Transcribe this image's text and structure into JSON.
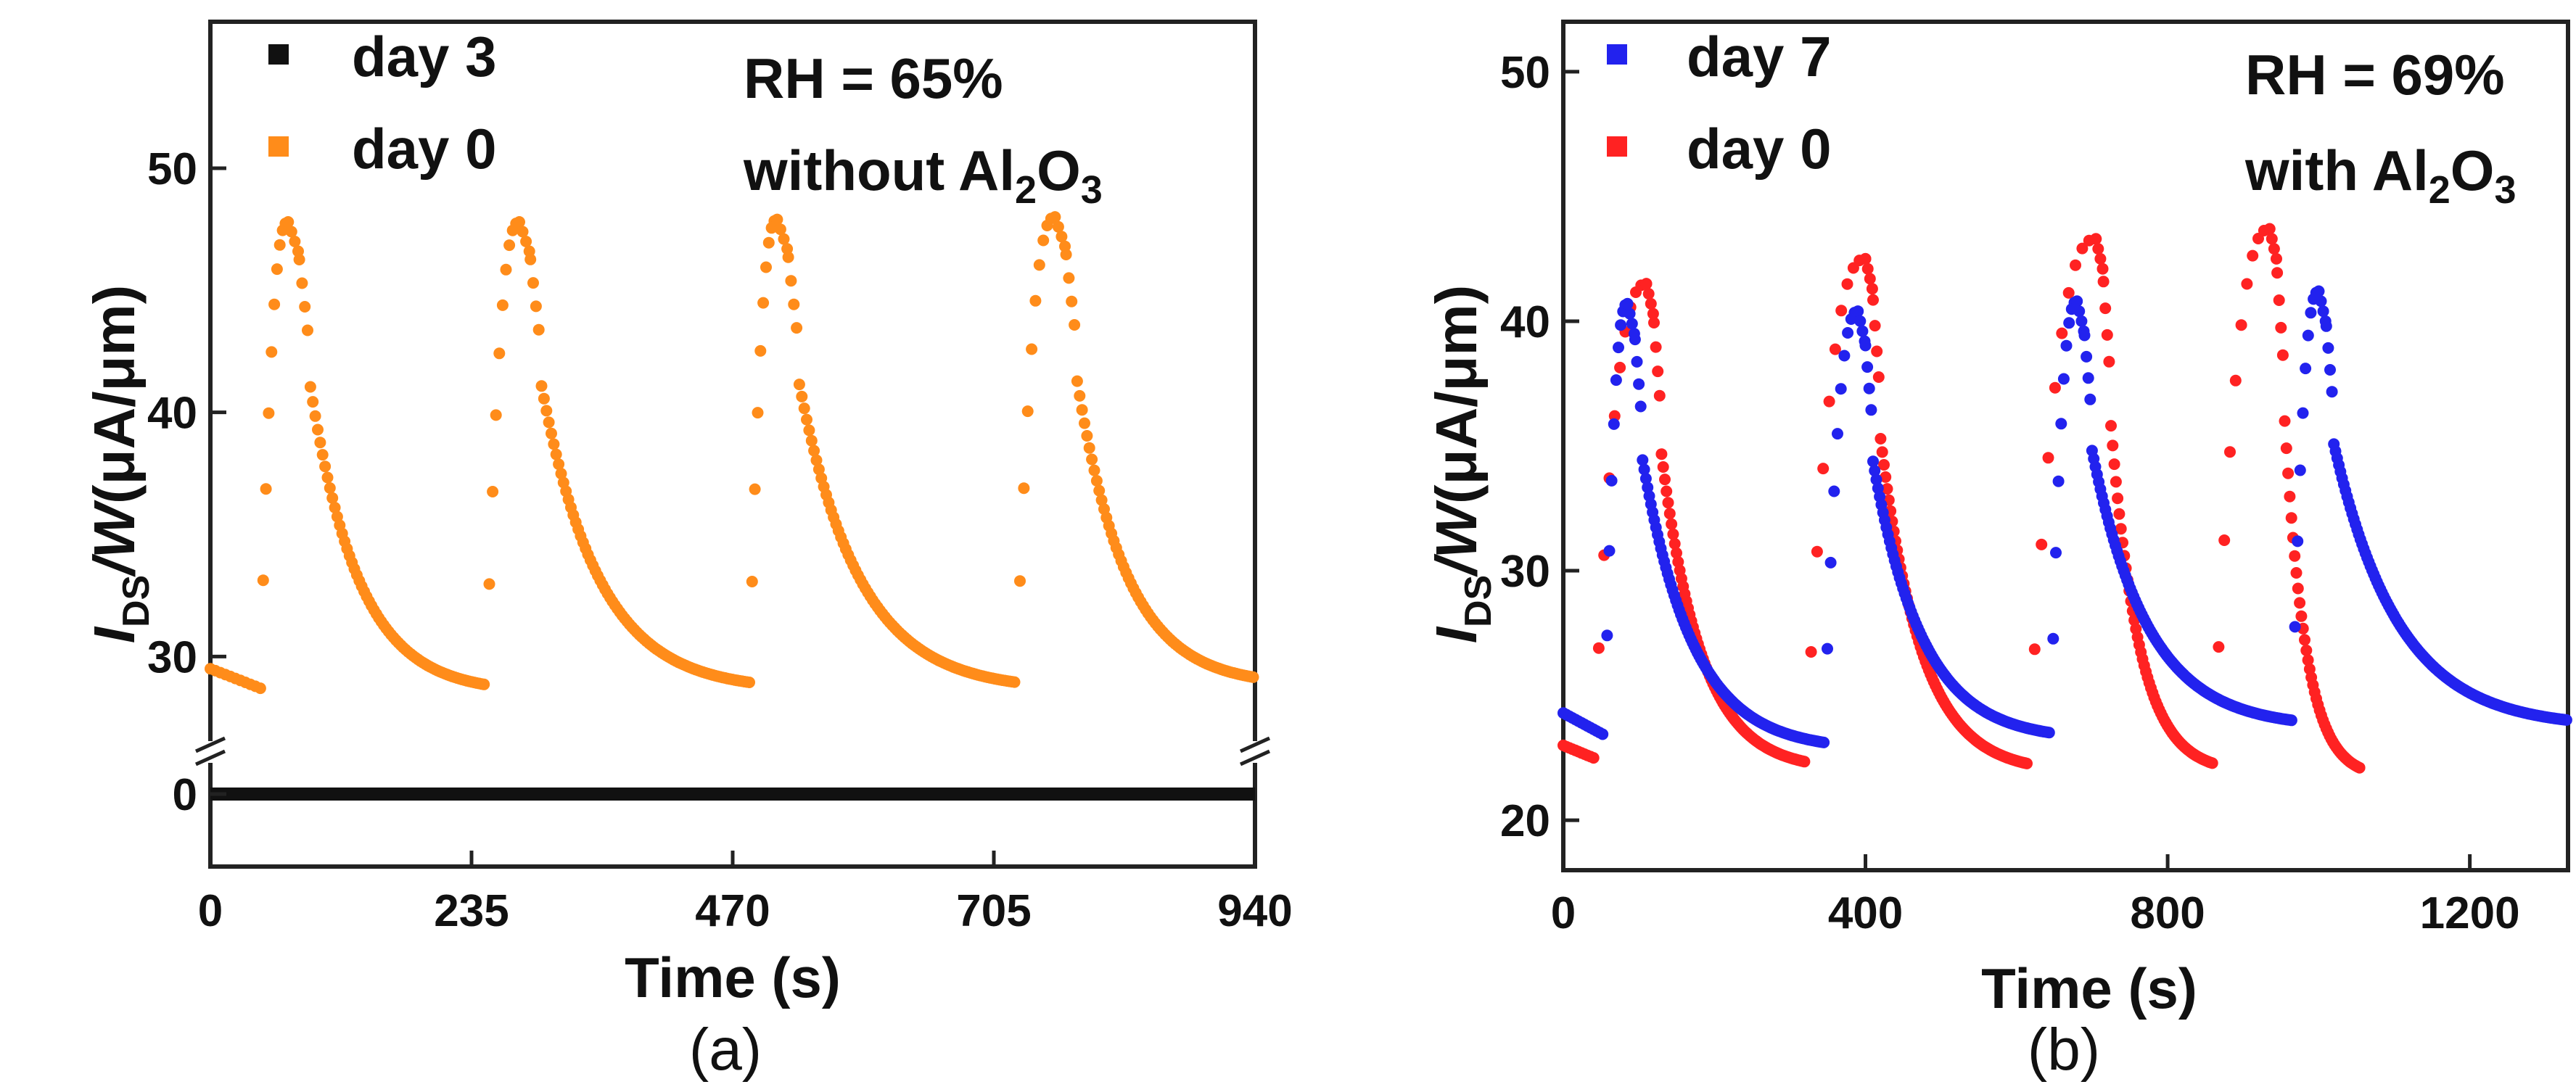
{
  "chart_data": [
    {
      "type": "scatter",
      "panel_label": "(a)",
      "xlabel": "Time (s)",
      "ylabel": {
        "main": "I",
        "sub": "DS",
        "rest": "/W",
        "unit": "(μA/μm)"
      },
      "xlim": [
        0,
        940
      ],
      "ylim": [
        26,
        56
      ],
      "broken_axis": {
        "lower_value": 0,
        "lower_tick_label": "0"
      },
      "xticks": [
        0,
        235,
        470,
        705,
        940
      ],
      "xtick_labels": [
        "0",
        "235",
        "470",
        "705",
        "940"
      ],
      "yticks": [
        30,
        40,
        50
      ],
      "ytick_labels": [
        "30",
        "40",
        "50"
      ],
      "annotation": {
        "line1": "RH = 65%",
        "line2_prefix": "without Al",
        "sub1": "2",
        "mid": "O",
        "sub2": "3"
      },
      "legend_position": "top-left",
      "series": [
        {
          "name": "day 3",
          "color": "#111111",
          "style": "constant-line",
          "value": 0,
          "x_range": [
            0,
            940
          ]
        },
        {
          "name": "day 0",
          "color": "#ff8c1a",
          "style": "pulses",
          "start_value": 29.5,
          "pre_step_end": [
            [
              0,
              29.5
            ],
            [
              45,
              28.7
            ]
          ],
          "pulses": [
            {
              "on": 45,
              "peak_time": 70,
              "peak": 47.8,
              "base_end_time": 248,
              "base_end": 28.5
            },
            {
              "on": 248,
              "peak_time": 278,
              "peak": 47.8,
              "base_end_time": 485,
              "base_end": 28.6
            },
            {
              "on": 485,
              "peak_time": 510,
              "peak": 47.9,
              "base_end_time": 725,
              "base_end": 28.6
            },
            {
              "on": 725,
              "peak_time": 760,
              "peak": 48.0,
              "base_end_time": 940,
              "base_end": 28.8
            }
          ]
        }
      ]
    },
    {
      "type": "scatter",
      "panel_label": "(b)",
      "xlabel": "Time (s)",
      "ylabel": {
        "main": "I",
        "sub": "DS",
        "rest": "/W",
        "unit": "(μA/μm)"
      },
      "xlim": [
        0,
        1330
      ],
      "ylim": [
        18,
        52
      ],
      "xticks": [
        0,
        400,
        800,
        1200
      ],
      "xtick_labels": [
        "0",
        "400",
        "800",
        "1200"
      ],
      "yticks": [
        20,
        30,
        40,
        50
      ],
      "ytick_labels": [
        "20",
        "30",
        "40",
        "50"
      ],
      "annotation": {
        "line1": "RH = 69%",
        "line2_prefix": "with Al",
        "sub1": "2",
        "mid": "O",
        "sub2": "3"
      },
      "legend_position": "top-left",
      "series": [
        {
          "name": "day 7",
          "color": "#2222ee",
          "style": "pulses",
          "pre_step_end": [
            [
              0,
              24.3
            ],
            [
              55,
              23.4
            ]
          ],
          "pulses": [
            {
              "on": 55,
              "peak_time": 85,
              "peak": 40.7,
              "base_end_time": 345,
              "base_end": 22.8
            },
            {
              "on": 345,
              "peak_time": 390,
              "peak": 40.4,
              "base_end_time": 645,
              "base_end": 23.2
            },
            {
              "on": 645,
              "peak_time": 680,
              "peak": 40.8,
              "base_end_time": 965,
              "base_end": 23.7
            },
            {
              "on": 965,
              "peak_time": 1000,
              "peak": 41.2,
              "base_end_time": 1330,
              "base_end": 23.7
            }
          ]
        },
        {
          "name": "day 0",
          "color": "#ff2222",
          "style": "pulses",
          "pre_step_end": [
            [
              0,
              23.0
            ],
            [
              40,
              22.5
            ]
          ],
          "pulses": [
            {
              "on": 40,
              "peak_time": 110,
              "peak": 41.5,
              "base_end_time": 320,
              "base_end": 22.0
            },
            {
              "on": 320,
              "peak_time": 400,
              "peak": 42.5,
              "base_end_time": 615,
              "base_end": 21.9
            },
            {
              "on": 615,
              "peak_time": 705,
              "peak": 43.3,
              "base_end_time": 860,
              "base_end": 21.9
            },
            {
              "on": 860,
              "peak_time": 935,
              "peak": 43.7,
              "base_end_time": 1055,
              "base_end": 21.7
            }
          ]
        }
      ]
    }
  ]
}
